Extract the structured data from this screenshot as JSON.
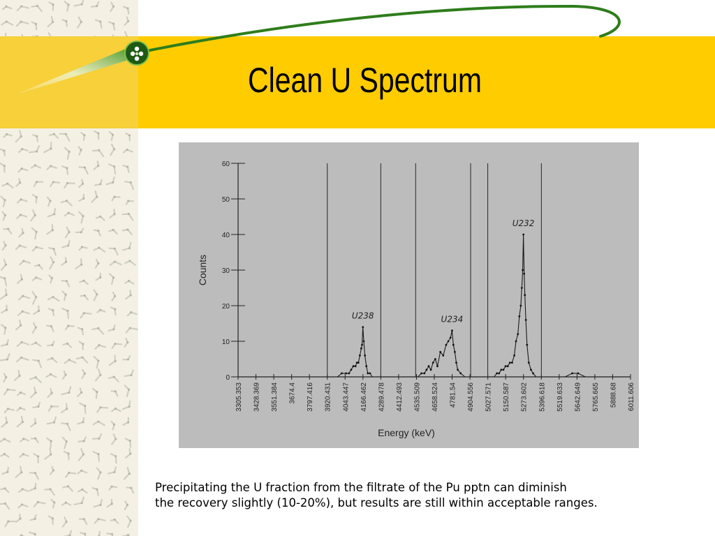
{
  "slide": {
    "title": "Clean U Spectrum",
    "caption_line1": "Precipitating the U fraction from the filtrate of the Pu pptn can diminish",
    "caption_line2": "the recovery slightly (10-20%), but results are still within acceptable ranges.",
    "colors": {
      "band": "#ffcc00",
      "orbit": "#2e7d1b",
      "pattern": "#cfcfbf"
    }
  },
  "chart_data": {
    "type": "line",
    "title": "",
    "xlabel": "Energy (keV)",
    "ylabel": "Counts",
    "ylim": [
      0,
      60
    ],
    "yticks": [
      0,
      10,
      20,
      30,
      40,
      50,
      60
    ],
    "xlim": [
      3305.353,
      6011.606
    ],
    "xticks": [
      "3305.353",
      "3428.369",
      "3551.384",
      "3674.4",
      "3797.416",
      "3920.431",
      "4043.447",
      "4166.462",
      "4289.478",
      "4412.493",
      "4535.509",
      "4658.524",
      "4781.54",
      "4904.556",
      "5027.571",
      "5150.587",
      "5273.602",
      "5396.618",
      "5519.633",
      "5642.649",
      "5765.665",
      "5888.68",
      "6011.606"
    ],
    "region_markers": [
      3920.4,
      4289.5,
      4530,
      4909,
      5027,
      5397
    ],
    "annotations": [
      {
        "text": "U238",
        "x": 4166.5,
        "y": 14
      },
      {
        "text": "U234",
        "x": 4781.5,
        "y": 13
      },
      {
        "text": "U232",
        "x": 5273.6,
        "y": 40
      }
    ],
    "series": [
      {
        "x": [
          3880,
          3940,
          3960,
          3990,
          4020,
          4050,
          4070,
          4085,
          4100,
          4115,
          4125,
          4135,
          4145,
          4155,
          4160,
          4166,
          4172,
          4180,
          4190,
          4200,
          4215,
          4230,
          4250,
          4280,
          4300,
          4330,
          4360,
          4400,
          4440,
          4480,
          4520,
          4545,
          4570,
          4590,
          4605,
          4620,
          4635,
          4650,
          4665,
          4680,
          4700,
          4720,
          4740,
          4755,
          4770,
          4781,
          4790,
          4800,
          4810,
          4820,
          4840,
          4870,
          4900,
          4940,
          4980,
          5010,
          5040,
          5070,
          5090,
          5105,
          5120,
          5135,
          5150,
          5165,
          5180,
          5195,
          5210,
          5222,
          5235,
          5245,
          5255,
          5262,
          5268,
          5273,
          5278,
          5283,
          5290,
          5298,
          5310,
          5325,
          5340,
          5360,
          5390,
          5420,
          5450,
          5500,
          5560,
          5610,
          5650,
          5700,
          5760,
          5820,
          5880,
          5940,
          6000
        ],
        "y": [
          0,
          0,
          0,
          0,
          1,
          1,
          1,
          2,
          3,
          3,
          4,
          4,
          6,
          8,
          9,
          14,
          10,
          6,
          3,
          1,
          1,
          0,
          0,
          0,
          0,
          0,
          0,
          0,
          0,
          0,
          0,
          0,
          1,
          1,
          2,
          3,
          2,
          4,
          5,
          3,
          7,
          6,
          9,
          10,
          11,
          13,
          9,
          7,
          4,
          2,
          1,
          0,
          0,
          0,
          0,
          0,
          0,
          0,
          1,
          1,
          2,
          2,
          3,
          3,
          4,
          4,
          6,
          10,
          12,
          17,
          20,
          25,
          30,
          40,
          29,
          23,
          16,
          9,
          4,
          2,
          1,
          0,
          0,
          0,
          0,
          0,
          0,
          1,
          1,
          0,
          0,
          0,
          0,
          0,
          0
        ]
      }
    ]
  }
}
